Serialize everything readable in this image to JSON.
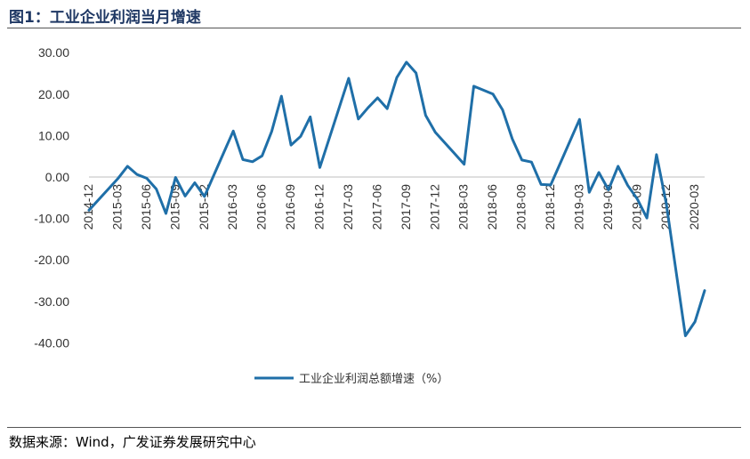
{
  "title": "图1：工业企业利润当月增速",
  "source": "数据来源：Wind，广发证券发展研究中心",
  "chart_data": {
    "type": "line",
    "title": "图1：工业企业利润当月增速",
    "xlabel": "",
    "ylabel": "",
    "ylim": [
      -40,
      30
    ],
    "yticks": [
      "30.00",
      "20.00",
      "10.00",
      "0.00",
      "-10.00",
      "-20.00",
      "-30.00",
      "-40.00"
    ],
    "xtick_labels": [
      "2014-12",
      "2015-03",
      "2015-06",
      "2015-09",
      "2015-12",
      "2016-03",
      "2016-06",
      "2016-09",
      "2016-12",
      "2017-03",
      "2017-06",
      "2017-09",
      "2017-12",
      "2018-03",
      "2018-06",
      "2018-09",
      "2018-12",
      "2019-03",
      "2019-06",
      "2019-09",
      "2019-12",
      "2020-03"
    ],
    "legend_position": "bottom",
    "grid": false,
    "line_color": "#1f6fa8",
    "series": [
      {
        "name": "工业企业利润总额增速（%）",
        "points": [
          [
            "2014-12",
            -8.0
          ],
          [
            "2015-03",
            -0.4
          ],
          [
            "2015-04",
            2.6
          ],
          [
            "2015-05",
            0.6
          ],
          [
            "2015-06",
            -0.3
          ],
          [
            "2015-07",
            -2.9
          ],
          [
            "2015-08",
            -8.8
          ],
          [
            "2015-09",
            -0.1
          ],
          [
            "2015-10",
            -4.6
          ],
          [
            "2015-11",
            -1.4
          ],
          [
            "2015-12",
            -4.7
          ],
          [
            "2016-03",
            11.1
          ],
          [
            "2016-04",
            4.2
          ],
          [
            "2016-05",
            3.7
          ],
          [
            "2016-06",
            5.1
          ],
          [
            "2016-07",
            11.0
          ],
          [
            "2016-08",
            19.5
          ],
          [
            "2016-09",
            7.7
          ],
          [
            "2016-10",
            9.8
          ],
          [
            "2016-11",
            14.5
          ],
          [
            "2016-12",
            2.3
          ],
          [
            "2017-03",
            23.8
          ],
          [
            "2017-04",
            14.0
          ],
          [
            "2017-05",
            16.7
          ],
          [
            "2017-06",
            19.1
          ],
          [
            "2017-07",
            16.5
          ],
          [
            "2017-08",
            24.0
          ],
          [
            "2017-09",
            27.7
          ],
          [
            "2017-10",
            25.1
          ],
          [
            "2017-11",
            14.9
          ],
          [
            "2017-12",
            10.8
          ],
          [
            "2018-03",
            3.1
          ],
          [
            "2018-04",
            21.9
          ],
          [
            "2018-06",
            20.0
          ],
          [
            "2018-07",
            16.2
          ],
          [
            "2018-08",
            9.2
          ],
          [
            "2018-09",
            4.1
          ],
          [
            "2018-10",
            3.6
          ],
          [
            "2018-11",
            -1.8
          ],
          [
            "2018-12",
            -1.9
          ],
          [
            "2019-03",
            13.9
          ],
          [
            "2019-04",
            -3.7
          ],
          [
            "2019-05",
            1.1
          ],
          [
            "2019-06",
            -3.1
          ],
          [
            "2019-07",
            2.6
          ],
          [
            "2019-08",
            -2.0
          ],
          [
            "2019-09",
            -5.3
          ],
          [
            "2019-10",
            -9.9
          ],
          [
            "2019-11",
            5.4
          ],
          [
            "2019-12",
            -6.3
          ],
          [
            "2020-02",
            -38.3
          ],
          [
            "2020-03",
            -34.9
          ],
          [
            "2020-04",
            -27.4
          ]
        ]
      }
    ]
  }
}
